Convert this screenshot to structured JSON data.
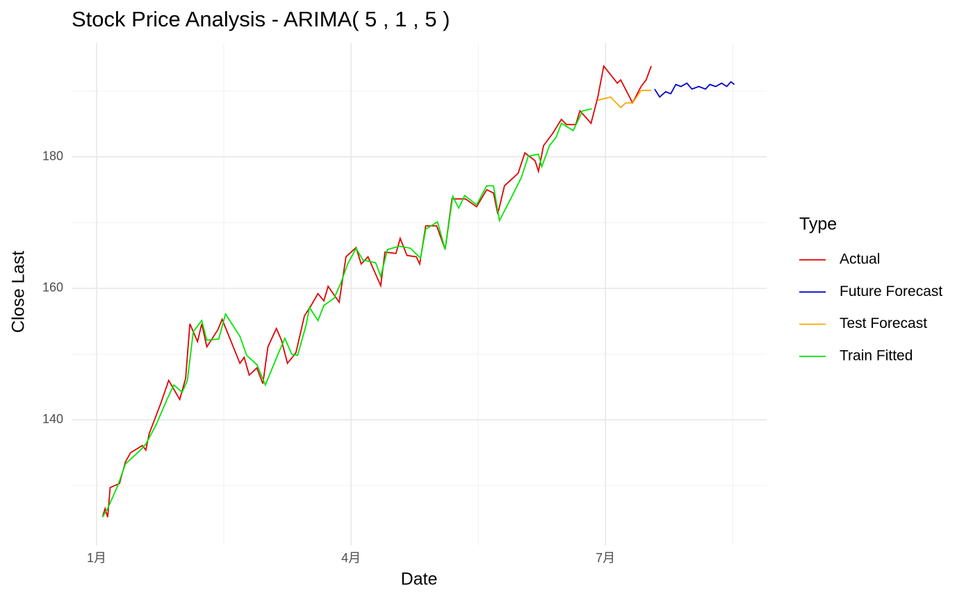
{
  "chart_data": {
    "type": "line",
    "title": "Stock Price Analysis - ARIMA( 5 , 1 , 5 )",
    "x_label": "Date",
    "y_label": "Close Last",
    "legend_title": "Type",
    "legend_position": "right",
    "grid": true,
    "minor_grid": true,
    "xlim": [
      0.705,
      8.9
    ],
    "ylim": [
      120.9,
      197.3
    ],
    "xticks": [
      {
        "value": 1,
        "label": "1月"
      },
      {
        "value": 4,
        "label": "4月"
      },
      {
        "value": 7,
        "label": "7月"
      }
    ],
    "yticks": [
      140,
      160,
      180
    ],
    "series": [
      {
        "name": "Actual",
        "color": "#e00000",
        "x": [
          1.07,
          1.1,
          1.13,
          1.16,
          1.27,
          1.34,
          1.4,
          1.54,
          1.58,
          1.62,
          1.76,
          1.85,
          1.98,
          2.05,
          2.1,
          2.19,
          2.24,
          2.3,
          2.43,
          2.48,
          2.69,
          2.74,
          2.8,
          2.89,
          2.96,
          3.02,
          3.12,
          3.18,
          3.25,
          3.35,
          3.45,
          3.53,
          3.61,
          3.68,
          3.73,
          3.86,
          3.94,
          4.06,
          4.12,
          4.2,
          4.35,
          4.4,
          4.53,
          4.58,
          4.66,
          4.77,
          4.81,
          4.88,
          5.01,
          5.11,
          5.19,
          5.35,
          5.48,
          5.6,
          5.68,
          5.73,
          5.81,
          5.97,
          6.05,
          6.17,
          6.21,
          6.27,
          6.38,
          6.48,
          6.54,
          6.65,
          6.7,
          6.83,
          6.91,
          6.98,
          7.14,
          7.18,
          7.32,
          7.42,
          7.48,
          7.54
        ],
        "values": [
          125.2,
          126.5,
          125.2,
          129.7,
          130.3,
          133.6,
          135.0,
          136.1,
          135.4,
          137.9,
          142.6,
          146.0,
          143.1,
          146.3,
          154.6,
          151.9,
          154.6,
          151.1,
          153.7,
          155.3,
          148.6,
          149.5,
          146.8,
          147.9,
          145.5,
          151.1,
          153.9,
          152.1,
          148.6,
          150.2,
          155.8,
          157.4,
          159.2,
          158.1,
          160.3,
          157.9,
          164.8,
          166.2,
          163.7,
          164.8,
          160.4,
          165.5,
          165.3,
          167.6,
          165.0,
          164.8,
          163.7,
          169.5,
          169.5,
          165.9,
          173.6,
          173.6,
          172.4,
          175.0,
          174.5,
          171.3,
          175.6,
          177.5,
          180.6,
          179.4,
          177.8,
          181.7,
          183.6,
          185.7,
          184.9,
          184.9,
          187.0,
          185.1,
          189.1,
          193.8,
          191.2,
          191.7,
          188.2,
          190.7,
          191.7,
          193.8
        ]
      },
      {
        "name": "Future Forecast",
        "color": "#0000cc",
        "x": [
          7.58,
          7.64,
          7.71,
          7.77,
          7.83,
          7.89,
          7.96,
          8.02,
          8.1,
          8.18,
          8.23,
          8.3,
          8.37,
          8.43,
          8.48,
          8.52
        ],
        "values": [
          190.3,
          189.1,
          189.9,
          189.6,
          191.0,
          190.7,
          191.2,
          190.3,
          190.7,
          190.3,
          191.0,
          190.7,
          191.2,
          190.7,
          191.4,
          191.0
        ]
      },
      {
        "name": "Test Forecast",
        "color": "#ffa500",
        "x": [
          6.91,
          7.06,
          7.18,
          7.24,
          7.32,
          7.42,
          7.54
        ],
        "values": [
          188.6,
          189.1,
          187.5,
          188.2,
          188.2,
          190.1,
          190.1
        ]
      },
      {
        "name": "Train Fitted",
        "color": "#00e600",
        "x": [
          1.07,
          1.13,
          1.25,
          1.34,
          1.5,
          1.58,
          1.7,
          1.83,
          1.91,
          2.01,
          2.07,
          2.14,
          2.24,
          2.3,
          2.44,
          2.52,
          2.69,
          2.77,
          2.89,
          2.99,
          3.14,
          3.22,
          3.3,
          3.37,
          3.47,
          3.51,
          3.61,
          3.68,
          3.8,
          3.88,
          3.96,
          4.06,
          4.14,
          4.29,
          4.35,
          4.43,
          4.57,
          4.7,
          4.82,
          4.88,
          5.02,
          5.11,
          5.2,
          5.27,
          5.34,
          5.48,
          5.6,
          5.68,
          5.75,
          5.89,
          6.01,
          6.09,
          6.21,
          6.25,
          6.34,
          6.42,
          6.48,
          6.62,
          6.73,
          6.84
        ],
        "values": [
          125.2,
          126.5,
          130.0,
          133.3,
          135.2,
          136.3,
          139.2,
          143.1,
          145.3,
          144.2,
          146.0,
          153.4,
          155.1,
          152.1,
          152.3,
          156.1,
          152.7,
          149.8,
          148.4,
          145.3,
          150.0,
          152.4,
          150.0,
          149.8,
          154.4,
          157.1,
          155.1,
          157.4,
          158.5,
          160.8,
          163.7,
          166.1,
          164.3,
          163.9,
          161.8,
          165.9,
          166.4,
          166.1,
          164.6,
          169.0,
          170.1,
          165.9,
          174.0,
          172.2,
          174.1,
          172.7,
          175.6,
          175.6,
          170.3,
          173.8,
          176.9,
          180.1,
          180.4,
          178.5,
          181.7,
          183.0,
          185.1,
          184.0,
          187.0,
          187.3
        ]
      }
    ]
  }
}
